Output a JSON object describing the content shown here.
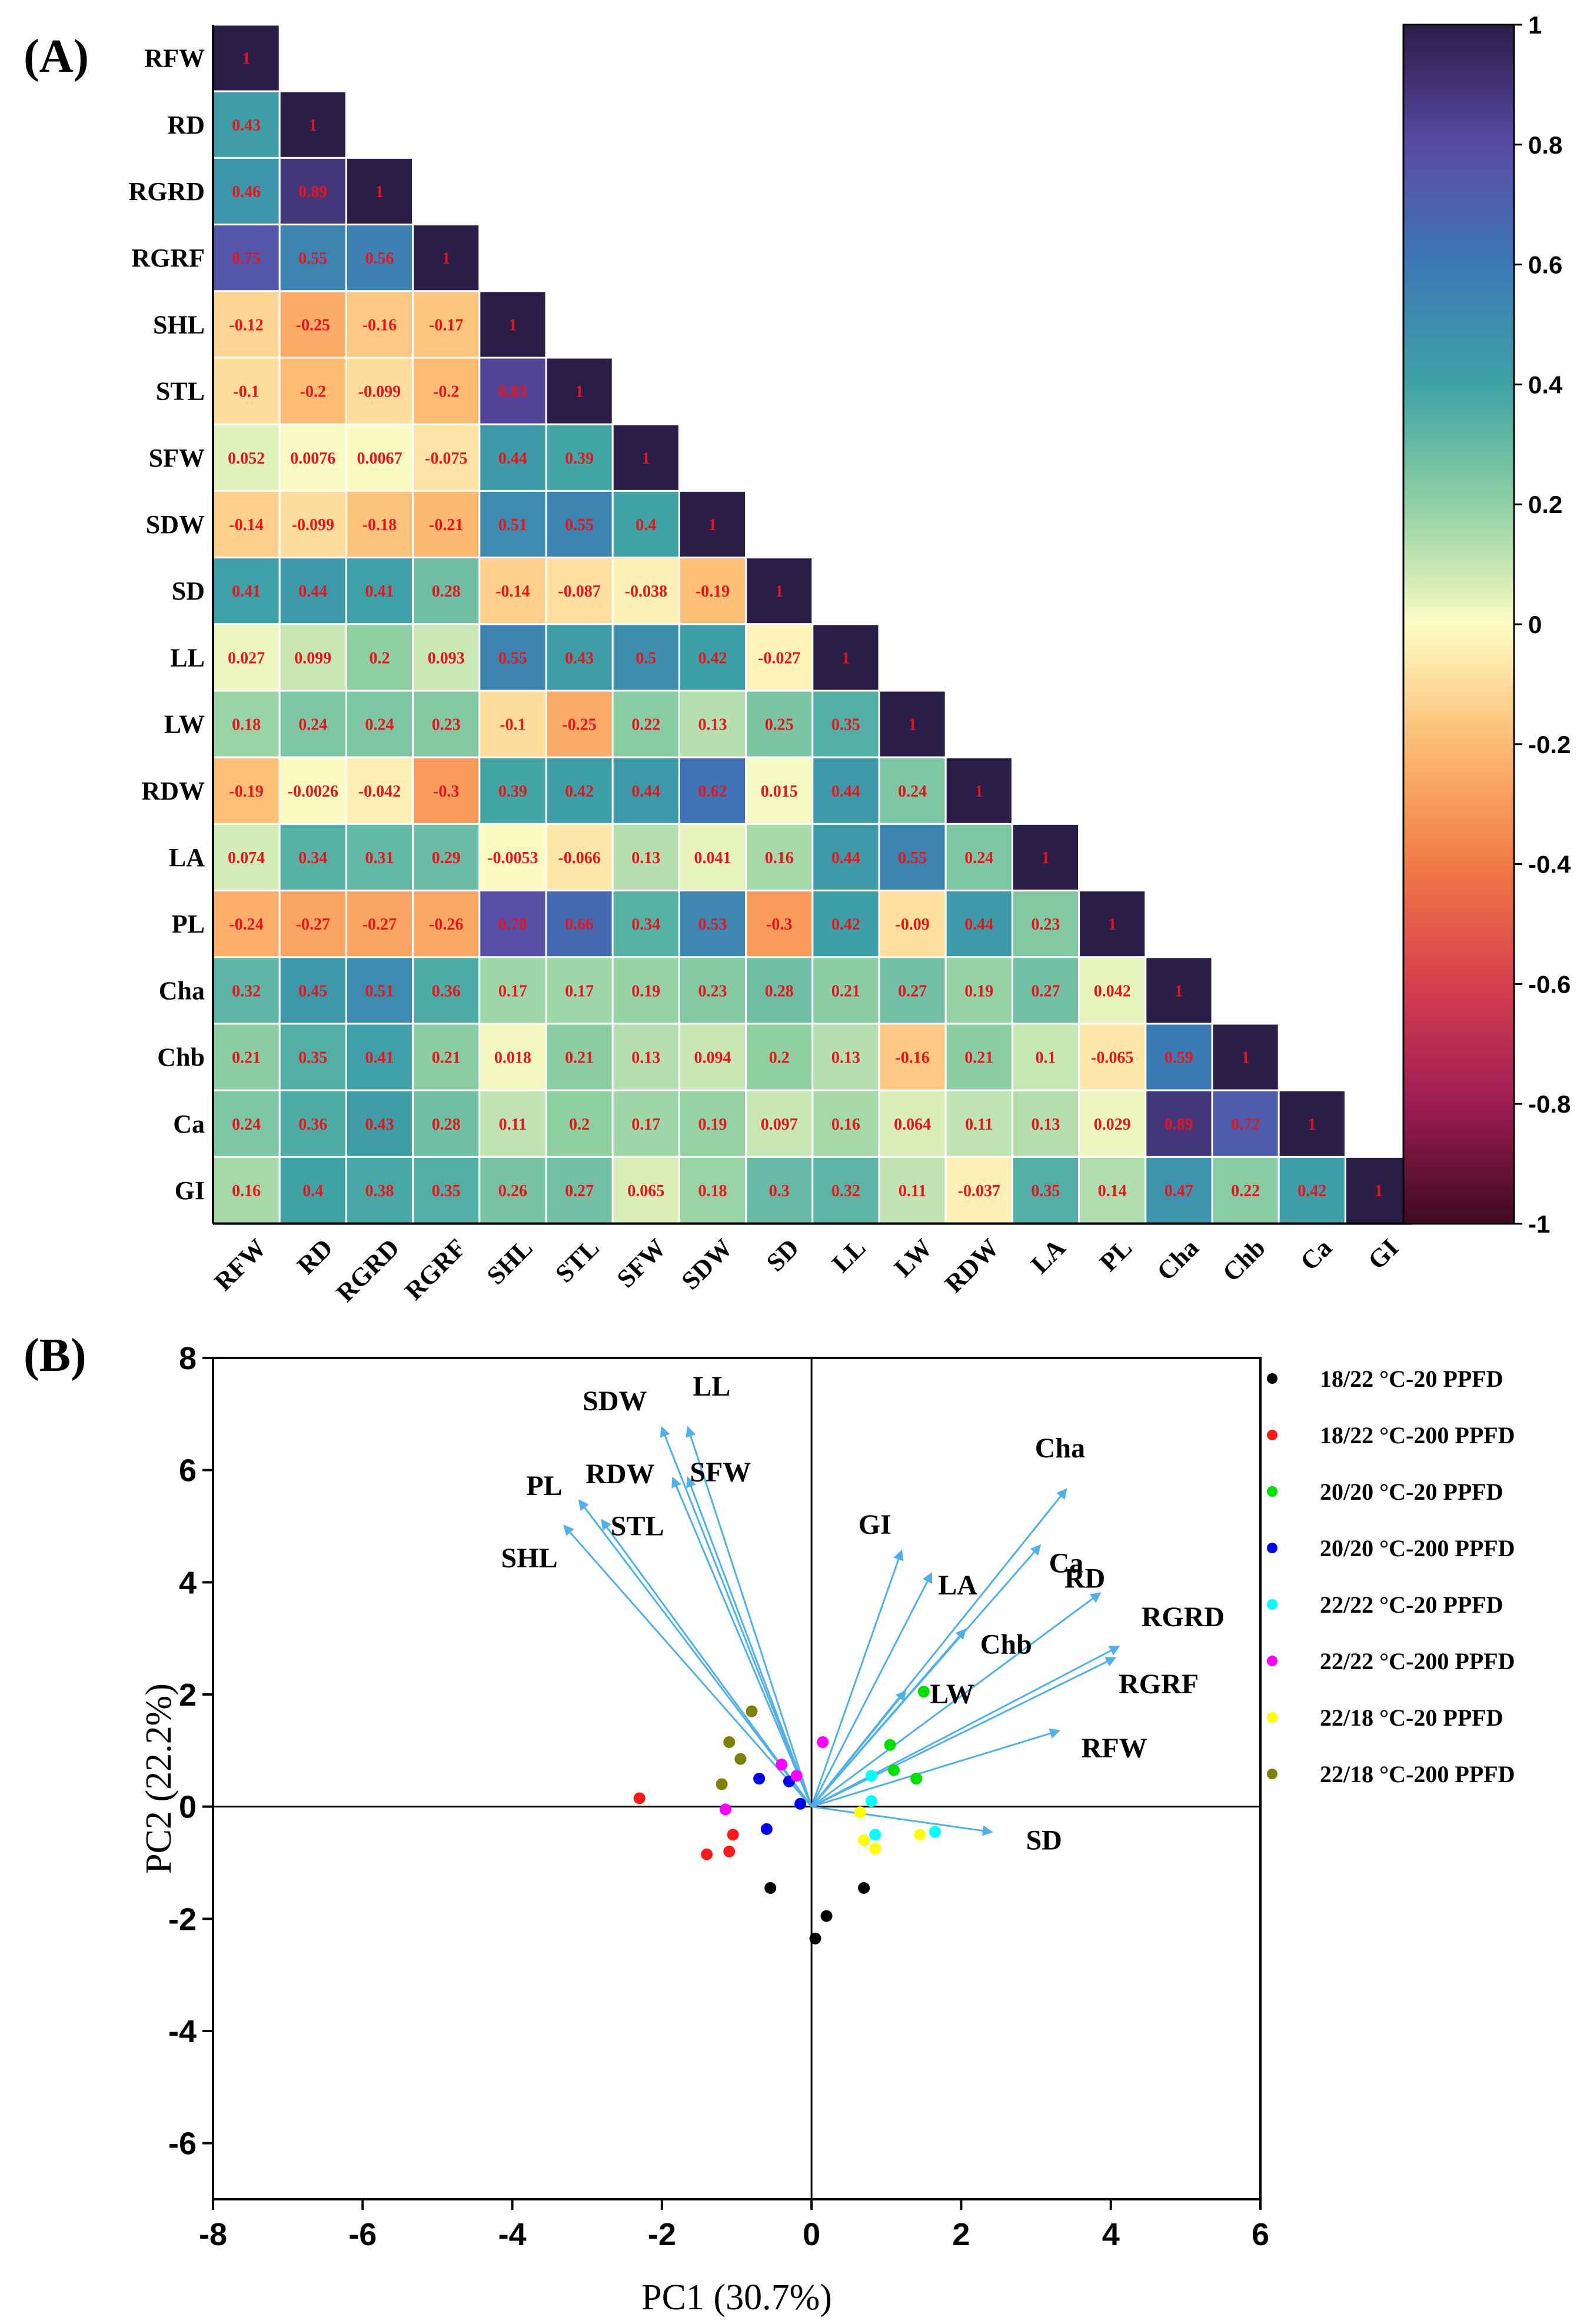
{
  "panelA": {
    "label": "(A)",
    "colorbar": {
      "ticks": [
        1,
        0.8,
        0.6,
        0.4,
        0.2,
        0,
        -0.2,
        -0.4,
        -0.6,
        -0.8,
        -1
      ],
      "tick_labels": [
        "1",
        "0.8",
        "0.6",
        "0.4",
        "0.2",
        "0",
        "-0.2",
        "-0.4",
        "-0.6",
        "-0.8",
        "-1"
      ],
      "range": [
        -1,
        1
      ]
    }
  },
  "panelB": {
    "label": "(B)"
  },
  "chart_data": [
    {
      "type": "heatmap",
      "title": "",
      "variables": [
        "RFW",
        "RD",
        "RGRD",
        "RGRF",
        "SHL",
        "STL",
        "SFW",
        "SDW",
        "SD",
        "LL",
        "LW",
        "RDW",
        "LA",
        "PL",
        "Cha",
        "Chb",
        "Ca",
        "GI"
      ],
      "matrix_lower_triangle": [
        [
          "1"
        ],
        [
          "0.43",
          "1"
        ],
        [
          "0.46",
          "0.89",
          "1"
        ],
        [
          "0.75",
          "0.55",
          "0.56",
          "1"
        ],
        [
          "-0.12",
          "-0.25",
          "-0.16",
          "-0.17",
          "1"
        ],
        [
          "-0.1",
          "-0.2",
          "-0.099",
          "-0.2",
          "0.83",
          "1"
        ],
        [
          "0.052",
          "0.0076",
          "0.0067",
          "-0.075",
          "0.44",
          "0.39",
          "1"
        ],
        [
          "-0.14",
          "-0.099",
          "-0.18",
          "-0.21",
          "0.51",
          "0.55",
          "0.4",
          "1"
        ],
        [
          "0.41",
          "0.44",
          "0.41",
          "0.28",
          "-0.14",
          "-0.087",
          "-0.038",
          "-0.19",
          "1"
        ],
        [
          "0.027",
          "0.099",
          "0.2",
          "0.093",
          "0.55",
          "0.43",
          "0.5",
          "0.42",
          "-0.027",
          "1"
        ],
        [
          "0.18",
          "0.24",
          "0.24",
          "0.23",
          "-0.1",
          "-0.25",
          "0.22",
          "0.13",
          "0.25",
          "0.35",
          "1"
        ],
        [
          "-0.19",
          "-0.0026",
          "-0.042",
          "-0.3",
          "0.39",
          "0.42",
          "0.44",
          "0.62",
          "0.015",
          "0.44",
          "0.24",
          "1"
        ],
        [
          "0.074",
          "0.34",
          "0.31",
          "0.29",
          "-0.0053",
          "-0.066",
          "0.13",
          "0.041",
          "0.16",
          "0.44",
          "0.55",
          "0.24",
          "1"
        ],
        [
          "-0.24",
          "-0.27",
          "-0.27",
          "-0.26",
          "0.78",
          "0.66",
          "0.34",
          "0.53",
          "-0.3",
          "0.42",
          "-0.09",
          "0.44",
          "0.23",
          "1"
        ],
        [
          "0.32",
          "0.45",
          "0.51",
          "0.36",
          "0.17",
          "0.17",
          "0.19",
          "0.23",
          "0.28",
          "0.21",
          "0.27",
          "0.19",
          "0.27",
          "0.042",
          "1"
        ],
        [
          "0.21",
          "0.35",
          "0.41",
          "0.21",
          "0.018",
          "0.21",
          "0.13",
          "0.094",
          "0.2",
          "0.13",
          "-0.16",
          "0.21",
          "0.1",
          "-0.065",
          "0.59",
          "1"
        ],
        [
          "0.24",
          "0.36",
          "0.43",
          "0.28",
          "0.11",
          "0.2",
          "0.17",
          "0.19",
          "0.097",
          "0.16",
          "0.064",
          "0.11",
          "0.13",
          "0.029",
          "0.89",
          "0.72",
          "1"
        ],
        [
          "0.16",
          "0.4",
          "0.38",
          "0.35",
          "0.26",
          "0.27",
          "0.065",
          "0.18",
          "0.3",
          "0.32",
          "0.11",
          "-0.037",
          "0.35",
          "0.14",
          "0.47",
          "0.22",
          "0.42",
          "1"
        ]
      ],
      "color_range": [
        -1,
        1
      ]
    },
    {
      "type": "scatter",
      "title": "",
      "xlabel": "PC1 (30.7%)",
      "ylabel": "PC2 (22.2%)",
      "xlim": [
        -8,
        6
      ],
      "ylim": [
        -7,
        8
      ],
      "xticks": [
        -8,
        -6,
        -4,
        -2,
        0,
        2,
        4,
        6
      ],
      "yticks": [
        -6,
        -4,
        -2,
        0,
        2,
        4,
        6,
        8
      ],
      "xtick_labels": [
        "-8",
        "-6",
        "-4",
        "-2",
        "0",
        "2",
        "4",
        "6"
      ],
      "ytick_labels": [
        "-6",
        "-4",
        "-2",
        "0",
        "2",
        "4",
        "6",
        "8"
      ],
      "legend_position": "right",
      "series": [
        {
          "name": "18/22 °C-20 PPFD",
          "color": "#000000",
          "points": [
            [
              -0.55,
              -1.45
            ],
            [
              0.05,
              -2.35
            ],
            [
              0.2,
              -1.95
            ],
            [
              0.7,
              -1.45
            ]
          ]
        },
        {
          "name": "18/22 °C-200 PPFD",
          "color": "#ff1a1a",
          "points": [
            [
              -2.3,
              0.15
            ],
            [
              -1.4,
              -0.85
            ],
            [
              -1.1,
              -0.8
            ],
            [
              -1.05,
              -0.5
            ]
          ]
        },
        {
          "name": "20/20 °C-20 PPFD",
          "color": "#00e000",
          "points": [
            [
              1.05,
              1.1
            ],
            [
              1.1,
              0.65
            ],
            [
              1.4,
              0.5
            ],
            [
              1.5,
              2.05
            ]
          ]
        },
        {
          "name": "20/20 °C-200 PPFD",
          "color": "#0000ee",
          "points": [
            [
              -0.7,
              0.5
            ],
            [
              -0.6,
              -0.4
            ],
            [
              -0.3,
              0.45
            ],
            [
              -0.15,
              0.05
            ]
          ]
        },
        {
          "name": "22/22 °C-20 PPFD",
          "color": "#00ffff",
          "points": [
            [
              0.8,
              0.55
            ],
            [
              0.8,
              0.1
            ],
            [
              0.85,
              -0.5
            ],
            [
              1.65,
              -0.45
            ]
          ]
        },
        {
          "name": "22/22 °C-200 PPFD",
          "color": "#ff00ff",
          "points": [
            [
              -1.15,
              -0.05
            ],
            [
              -0.4,
              0.75
            ],
            [
              -0.2,
              0.55
            ],
            [
              0.15,
              1.15
            ]
          ]
        },
        {
          "name": "22/18 °C-20 PPFD",
          "color": "#ffff00",
          "points": [
            [
              0.65,
              -0.1
            ],
            [
              0.7,
              -0.6
            ],
            [
              0.85,
              -0.75
            ],
            [
              1.45,
              -0.5
            ]
          ]
        },
        {
          "name": "22/18 °C-200 PPFD",
          "color": "#808000",
          "points": [
            [
              -1.2,
              0.4
            ],
            [
              -1.1,
              1.15
            ],
            [
              -0.95,
              0.85
            ],
            [
              -0.8,
              1.7
            ]
          ]
        }
      ],
      "loadings": [
        {
          "name": "SDW",
          "x": -2.0,
          "y": 6.75
        },
        {
          "name": "LL",
          "x": -1.65,
          "y": 6.75
        },
        {
          "name": "RDW",
          "x": -1.85,
          "y": 5.85
        },
        {
          "name": "SFW",
          "x": -1.65,
          "y": 5.85
        },
        {
          "name": "PL",
          "x": -3.1,
          "y": 5.45
        },
        {
          "name": "STL",
          "x": -2.8,
          "y": 5.1
        },
        {
          "name": "SHL",
          "x": -3.3,
          "y": 5.0
        },
        {
          "name": "Cha",
          "x": 3.4,
          "y": 5.65
        },
        {
          "name": "Ca",
          "x": 3.05,
          "y": 4.65
        },
        {
          "name": "GI",
          "x": 1.2,
          "y": 4.55
        },
        {
          "name": "LA",
          "x": 1.6,
          "y": 4.15
        },
        {
          "name": "RD",
          "x": 3.85,
          "y": 3.8
        },
        {
          "name": "Chb",
          "x": 2.05,
          "y": 3.15
        },
        {
          "name": "RGRD",
          "x": 4.1,
          "y": 2.85
        },
        {
          "name": "RGRF",
          "x": 4.05,
          "y": 2.65
        },
        {
          "name": "LW",
          "x": 1.25,
          "y": 2.05
        },
        {
          "name": "RFW",
          "x": 3.3,
          "y": 1.35
        },
        {
          "name": "SD",
          "x": 2.4,
          "y": -0.45
        }
      ]
    }
  ]
}
